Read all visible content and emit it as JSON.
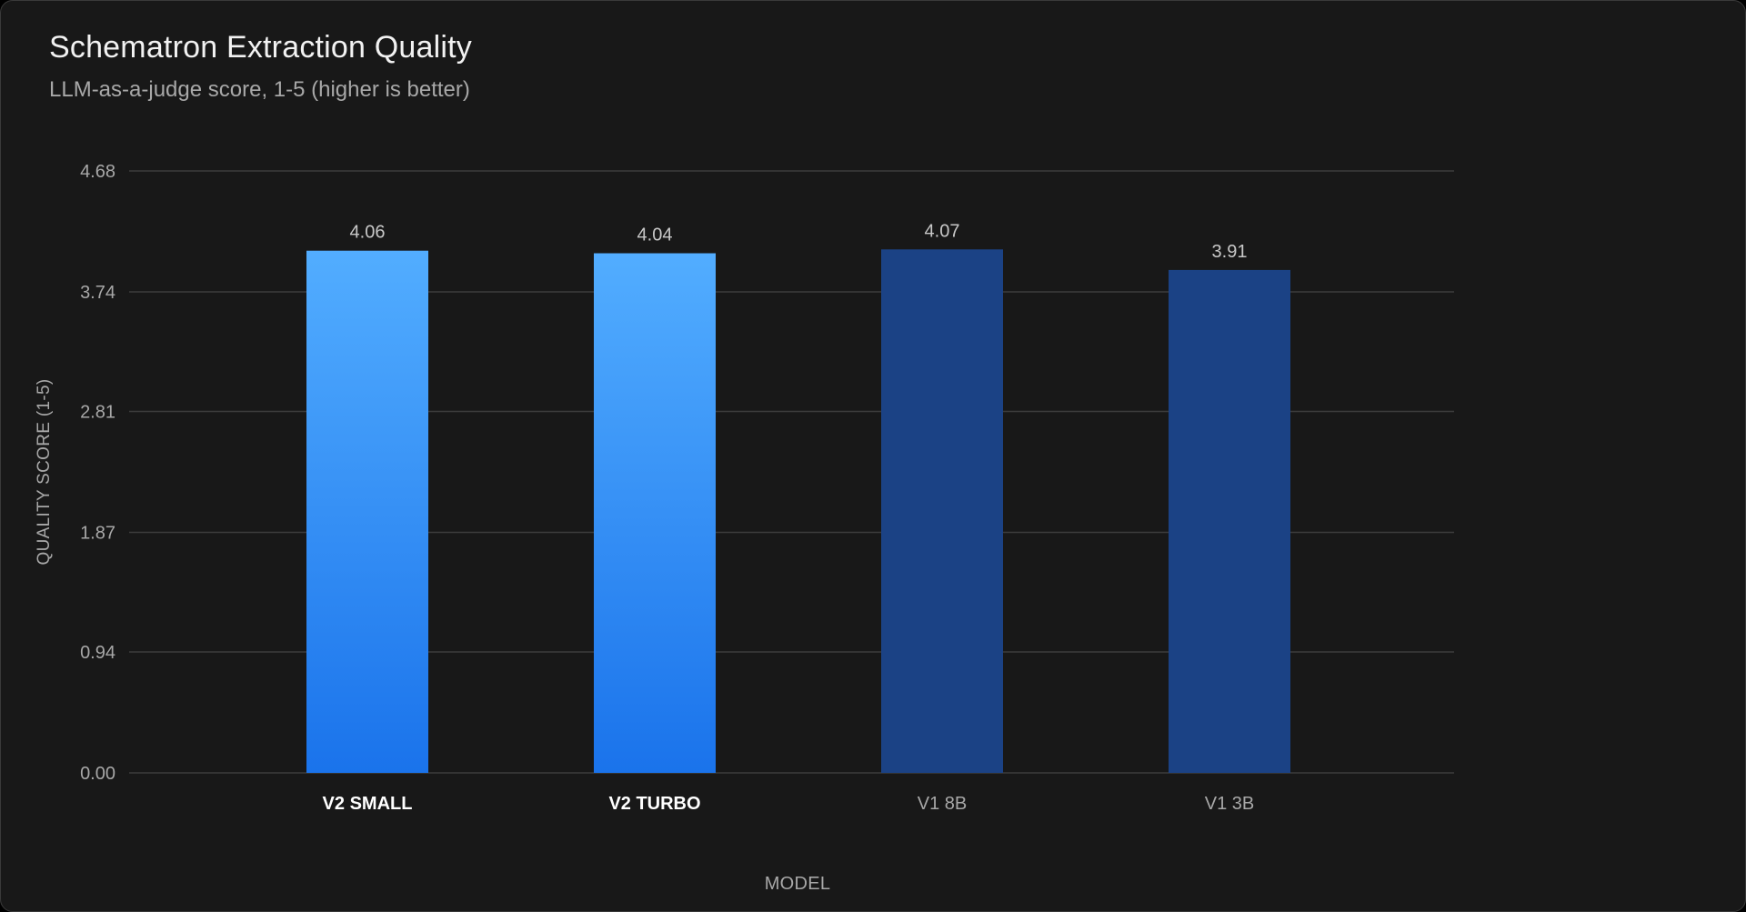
{
  "chart_data": {
    "type": "bar",
    "title": "Schematron Extraction Quality",
    "subtitle": "LLM-as-a-judge score, 1-5 (higher is better)",
    "xlabel": "MODEL",
    "ylabel": "QUALITY SCORE (1-5)",
    "categories": [
      "V2 SMALL",
      "V2 TURBO",
      "V1 8B",
      "V1 3B"
    ],
    "values": [
      4.06,
      4.04,
      4.07,
      3.91
    ],
    "value_labels": [
      "4.06",
      "4.04",
      "4.07",
      "3.91"
    ],
    "yticks": [
      "0.00",
      "0.94",
      "1.87",
      "2.81",
      "3.74",
      "4.68"
    ],
    "ylim": [
      0,
      4.68
    ],
    "grid": true,
    "colors": {
      "background": "#181818",
      "v2_top": "#52adff",
      "v2_bottom": "#1a73eb",
      "v1": "#1b4285",
      "grid": "#3c3c3c",
      "highlight_label": "#ffffff",
      "muted_label": "#a8a8a8"
    },
    "highlighted_categories": [
      "V2 SMALL",
      "V2 TURBO"
    ]
  }
}
